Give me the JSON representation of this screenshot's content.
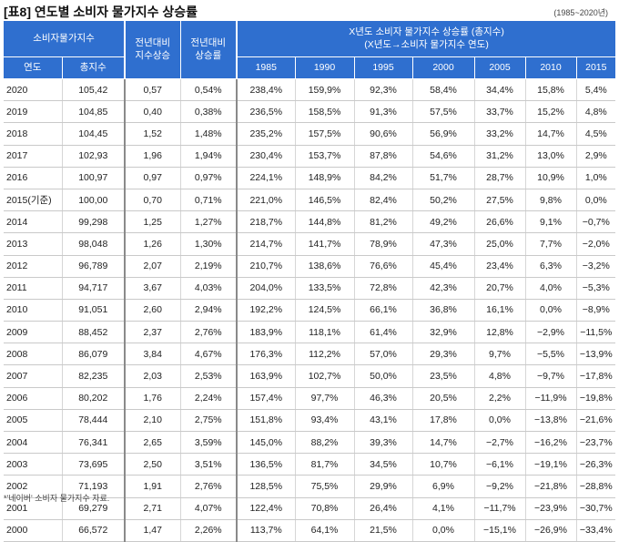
{
  "title": "[표8] 연도별 소비자 물가지수 상승률",
  "period": "(1985~2020년)",
  "headers": {
    "cpi_group": "소비자물가지수",
    "col_year": "연도",
    "col_index": "총지수",
    "col_prev_index": "전년대비\n지수상승",
    "col_prev_rate": "전년대비\n상승률",
    "growth_group": "X년도 소비자 물가지수 상승률 (총지수)\n(X년도→소비자 물가지수 연도)",
    "base_years": [
      "1985",
      "1990",
      "1995",
      "2000",
      "2005",
      "2010",
      "2015"
    ]
  },
  "rows": [
    [
      "2020",
      "105,42",
      "0,57",
      "0,54%",
      "238,4%",
      "159,9%",
      "92,3%",
      "58,4%",
      "34,4%",
      "15,8%",
      "5,4%"
    ],
    [
      "2019",
      "104,85",
      "0,40",
      "0,38%",
      "236,5%",
      "158,5%",
      "91,3%",
      "57,5%",
      "33,7%",
      "15,2%",
      "4,8%"
    ],
    [
      "2018",
      "104,45",
      "1,52",
      "1,48%",
      "235,2%",
      "157,5%",
      "90,6%",
      "56,9%",
      "33,2%",
      "14,7%",
      "4,5%"
    ],
    [
      "2017",
      "102,93",
      "1,96",
      "1,94%",
      "230,4%",
      "153,7%",
      "87,8%",
      "54,6%",
      "31,2%",
      "13,0%",
      "2,9%"
    ],
    [
      "2016",
      "100,97",
      "0,97",
      "0,97%",
      "224,1%",
      "148,9%",
      "84,2%",
      "51,7%",
      "28,7%",
      "10,9%",
      "1,0%"
    ],
    [
      "2015(기준)",
      "100,00",
      "0,70",
      "0,71%",
      "221,0%",
      "146,5%",
      "82,4%",
      "50,2%",
      "27,5%",
      "9,8%",
      "0,0%"
    ],
    [
      "2014",
      "99,298",
      "1,25",
      "1,27%",
      "218,7%",
      "144,8%",
      "81,2%",
      "49,2%",
      "26,6%",
      "9,1%",
      "−0,7%"
    ],
    [
      "2013",
      "98,048",
      "1,26",
      "1,30%",
      "214,7%",
      "141,7%",
      "78,9%",
      "47,3%",
      "25,0%",
      "7,7%",
      "−2,0%"
    ],
    [
      "2012",
      "96,789",
      "2,07",
      "2,19%",
      "210,7%",
      "138,6%",
      "76,6%",
      "45,4%",
      "23,4%",
      "6,3%",
      "−3,2%"
    ],
    [
      "2011",
      "94,717",
      "3,67",
      "4,03%",
      "204,0%",
      "133,5%",
      "72,8%",
      "42,3%",
      "20,7%",
      "4,0%",
      "−5,3%"
    ],
    [
      "2010",
      "91,051",
      "2,60",
      "2,94%",
      "192,2%",
      "124,5%",
      "66,1%",
      "36,8%",
      "16,1%",
      "0,0%",
      "−8,9%"
    ],
    [
      "2009",
      "88,452",
      "2,37",
      "2,76%",
      "183,9%",
      "118,1%",
      "61,4%",
      "32,9%",
      "12,8%",
      "−2,9%",
      "−11,5%"
    ],
    [
      "2008",
      "86,079",
      "3,84",
      "4,67%",
      "176,3%",
      "112,2%",
      "57,0%",
      "29,3%",
      "9,7%",
      "−5,5%",
      "−13,9%"
    ],
    [
      "2007",
      "82,235",
      "2,03",
      "2,53%",
      "163,9%",
      "102,7%",
      "50,0%",
      "23,5%",
      "4,8%",
      "−9,7%",
      "−17,8%"
    ],
    [
      "2006",
      "80,202",
      "1,76",
      "2,24%",
      "157,4%",
      "97,7%",
      "46,3%",
      "20,5%",
      "2,2%",
      "−11,9%",
      "−19,8%"
    ],
    [
      "2005",
      "78,444",
      "2,10",
      "2,75%",
      "151,8%",
      "93,4%",
      "43,1%",
      "17,8%",
      "0,0%",
      "−13,8%",
      "−21,6%"
    ],
    [
      "2004",
      "76,341",
      "2,65",
      "3,59%",
      "145,0%",
      "88,2%",
      "39,3%",
      "14,7%",
      "−2,7%",
      "−16,2%",
      "−23,7%"
    ],
    [
      "2003",
      "73,695",
      "2,50",
      "3,51%",
      "136,5%",
      "81,7%",
      "34,5%",
      "10,7%",
      "−6,1%",
      "−19,1%",
      "−26,3%"
    ],
    [
      "2002",
      "71,193",
      "1,91",
      "2,76%",
      "128,5%",
      "75,5%",
      "29,9%",
      "6,9%",
      "−9,2%",
      "−21,8%",
      "−28,8%"
    ],
    [
      "2001",
      "69,279",
      "2,71",
      "4,07%",
      "122,4%",
      "70,8%",
      "26,4%",
      "4,1%",
      "−11,7%",
      "−23,9%",
      "−30,7%"
    ],
    [
      "2000",
      "66,572",
      "1,47",
      "2,26%",
      "113,7%",
      "64,1%",
      "21,5%",
      "0,0%",
      "−15,1%",
      "−26,9%",
      "−33,4%"
    ]
  ],
  "note": "*'네이버' 소비자 물가지수 자료."
}
